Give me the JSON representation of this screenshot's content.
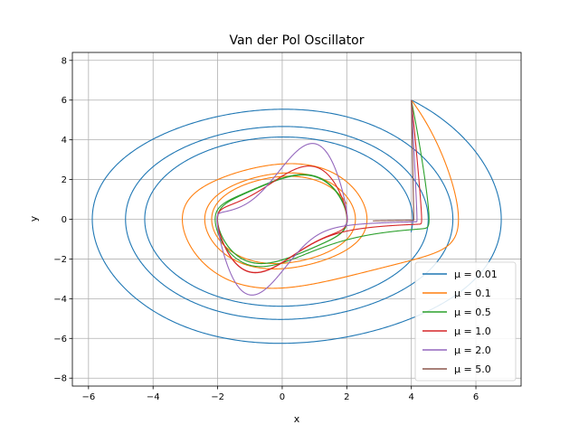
{
  "chart_data": {
    "type": "line",
    "title": "Van der Pol Oscillator",
    "xlabel": "x",
    "ylabel": "y",
    "xlim": [
      -6.5,
      7.4
    ],
    "ylim": [
      -8.4,
      8.4
    ],
    "xticks": [
      -6,
      -4,
      -2,
      0,
      2,
      4,
      6
    ],
    "yticks": [
      -8,
      -6,
      -4,
      -2,
      0,
      2,
      4,
      6,
      8
    ],
    "grid": true,
    "legend_position": "lower-right",
    "initial_condition": [
      4,
      6
    ],
    "t_max": 20,
    "series": [
      {
        "name": "μ = 0.01",
        "mu": 0.01,
        "color": "#1f77b4"
      },
      {
        "name": "μ = 0.1",
        "mu": 0.1,
        "color": "#ff7f0e"
      },
      {
        "name": "μ = 0.5",
        "mu": 0.5,
        "color": "#2ca02c"
      },
      {
        "name": "μ = 1.0",
        "mu": 1.0,
        "color": "#d62728"
      },
      {
        "name": "μ = 2.0",
        "mu": 2.0,
        "color": "#9467bd"
      },
      {
        "name": "μ = 5.0",
        "mu": 5.0,
        "color": "#8c564b"
      }
    ]
  }
}
